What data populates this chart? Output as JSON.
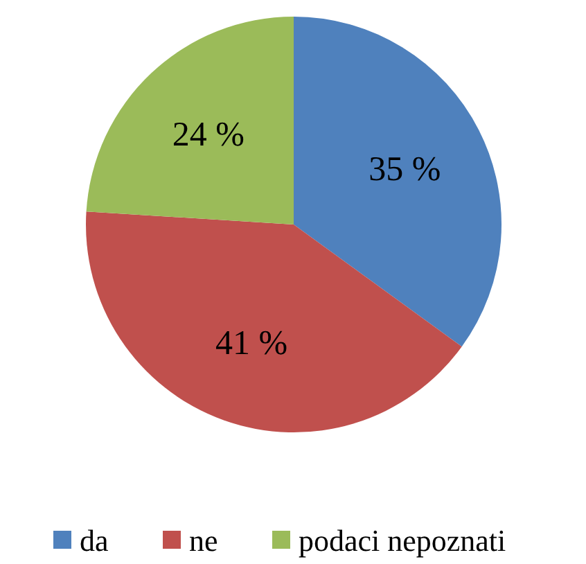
{
  "chart_data": {
    "type": "pie",
    "categories": [
      "da",
      "ne",
      "podaci nepoznati"
    ],
    "values": [
      35,
      41,
      24
    ],
    "colors": [
      "#4f81bd",
      "#c0504d",
      "#9bbb59"
    ],
    "value_labels": [
      "35 %",
      "41 %",
      "24 %"
    ],
    "legend": "bottom"
  }
}
